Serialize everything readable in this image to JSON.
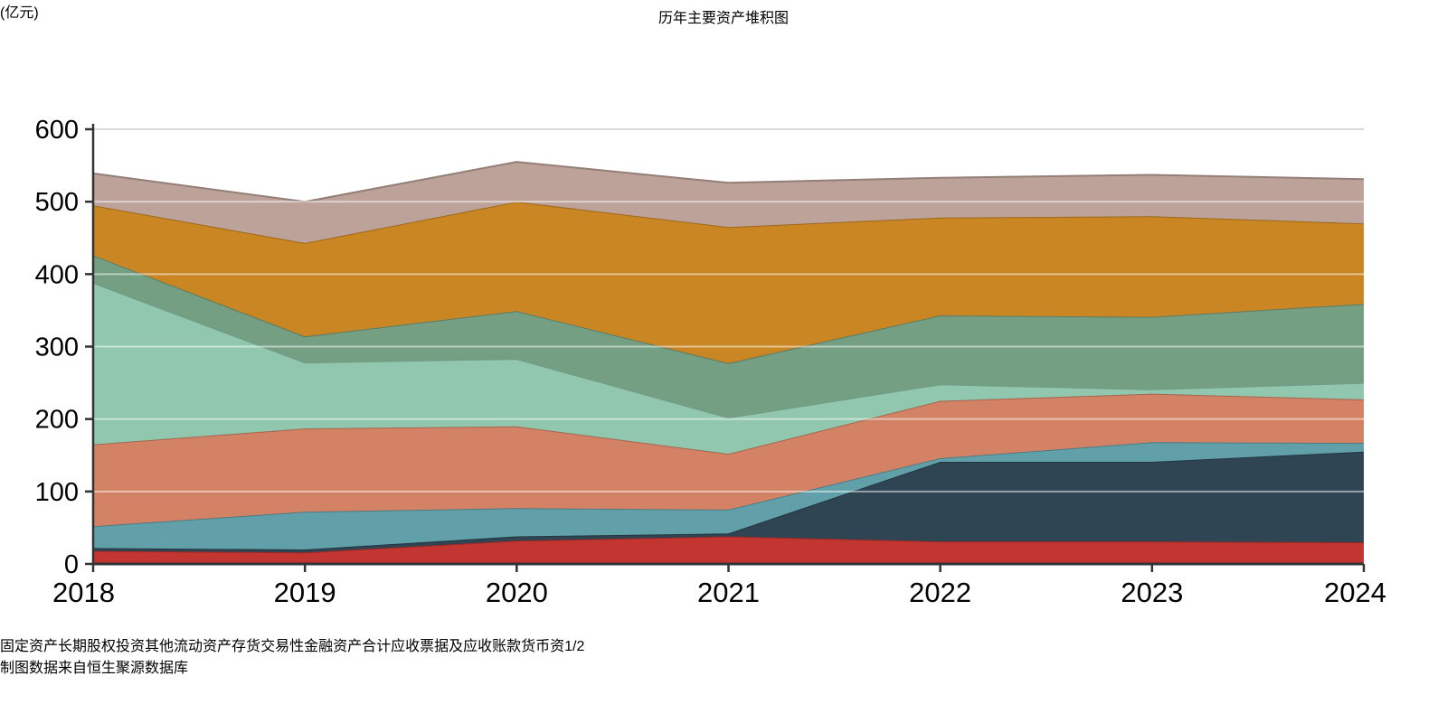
{
  "title": "历年主要资产堆积图",
  "y_axis": {
    "unit_label": "(亿元)",
    "ticks": [
      0,
      100,
      200,
      300,
      400,
      500,
      600
    ],
    "max": 600
  },
  "x_axis": {
    "categories": [
      "2018",
      "2019",
      "2020",
      "2021",
      "2022",
      "2023",
      "2024"
    ]
  },
  "chart_data": {
    "type": "area",
    "stacked": true,
    "title": "历年主要资产堆积图",
    "x": [
      "2018",
      "2019",
      "2020",
      "2021",
      "2022",
      "2023",
      "2024"
    ],
    "ylabel": "(亿元)",
    "ylim": [
      0,
      600
    ],
    "grid": true,
    "legend_position": "bottom",
    "series": [
      {
        "name": "固定资产",
        "color": "#c23531",
        "values": [
          18,
          16,
          32,
          38,
          31,
          31,
          30
        ]
      },
      {
        "name": "长期股权投资",
        "color": "#2f4554",
        "values": [
          4,
          4,
          6,
          4,
          110,
          110,
          125
        ]
      },
      {
        "name": "其他流动资产",
        "color": "#61a0a8",
        "values": [
          30,
          52,
          39,
          33,
          5,
          27,
          12
        ]
      },
      {
        "name": "存货",
        "color": "#d48265",
        "values": [
          113,
          115,
          113,
          77,
          79,
          67,
          60
        ]
      },
      {
        "name": "交易性金融资产合计",
        "color": "#91c7ae",
        "values": [
          223,
          91,
          93,
          50,
          23,
          6,
          23
        ]
      },
      {
        "name": "应收票据及应收账款",
        "color": "#749f83",
        "values": [
          38,
          36,
          66,
          75,
          95,
          100,
          109
        ]
      },
      {
        "name": "货币资",
        "color": "#ca8622",
        "values": [
          69,
          129,
          151,
          188,
          135,
          139,
          111
        ]
      },
      {
        "name": "",
        "color": "#bda29a",
        "values": [
          44,
          57,
          55,
          61,
          55,
          57,
          61
        ]
      }
    ]
  },
  "legend": {
    "visible_items": [
      "固定资产",
      "长期股权投资",
      "其他流动资产",
      "存货",
      "交易性金融资产合计",
      "应收票据及应收账款",
      "货币资"
    ],
    "pager": {
      "page_text": "1/2",
      "prev_icon": "left-triangle",
      "next_icon": "right-triangle"
    }
  },
  "source_note": "制图数据来自恒生聚源数据库",
  "colors": {
    "background": "#ffffff",
    "title_text": "#333333",
    "axis_line": "#333333",
    "axis_label": "#3b3b3b",
    "gridline": "#d8d8d8",
    "gridline_overlay": "rgba(255,255,255,0.5)",
    "unit_label": "#dd2b25",
    "source_text": "#c8861b",
    "pager_prev": "#b3b7ba",
    "pager_next": "#2f4554"
  }
}
